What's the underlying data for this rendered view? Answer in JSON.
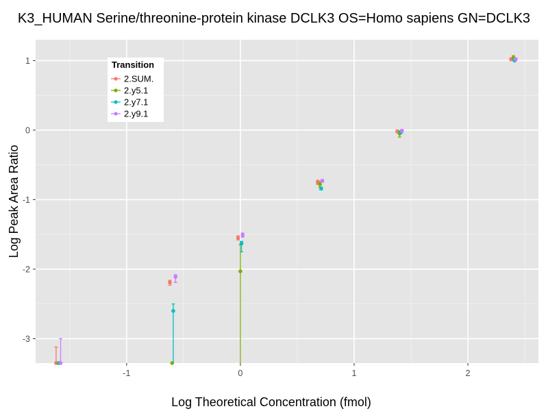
{
  "chart_data": {
    "type": "scatter",
    "title": "K3_HUMAN Serine/threonine-protein kinase DCLK3 OS=Homo sapiens GN=DCLK3",
    "xlabel": "Log Theoretical Concentration (fmol)",
    "ylabel": "Log Peak Area Ratio",
    "xlim": [
      -1.8,
      2.62
    ],
    "ylim": [
      -3.35,
      1.3
    ],
    "x_ticks": [
      -1,
      0,
      1,
      2
    ],
    "y_ticks": [
      -3,
      -2,
      -1,
      0,
      1
    ],
    "grid": true,
    "legend": {
      "title": "Transition",
      "position": "top-left"
    },
    "series": [
      {
        "name": "2.SUM.",
        "color": "#F8766D",
        "points": [
          {
            "x": -1.62,
            "y": -3.35,
            "lo": -3.35,
            "hi": -3.12
          },
          {
            "x": -0.62,
            "y": -2.19,
            "lo": -2.23,
            "hi": -2.16
          },
          {
            "x": -0.02,
            "y": -1.55,
            "lo": -1.58,
            "hi": -1.52
          },
          {
            "x": 0.68,
            "y": -0.75,
            "lo": -0.78,
            "hi": -0.72
          },
          {
            "x": 1.38,
            "y": -0.02,
            "lo": -0.04,
            "hi": 0.0
          },
          {
            "x": 2.38,
            "y": 1.02,
            "lo": 1.0,
            "hi": 1.04
          }
        ]
      },
      {
        "name": "2.y5.1",
        "color": "#7CAE00",
        "points": [
          {
            "x": -1.6,
            "y": -3.35,
            "lo": -3.35,
            "hi": -3.35
          },
          {
            "x": -0.6,
            "y": -3.35,
            "lo": -3.35,
            "hi": -3.35
          },
          {
            "x": 0.0,
            "y": -2.03,
            "lo": -3.35,
            "hi": -1.65
          },
          {
            "x": 0.7,
            "y": -0.78,
            "lo": -0.82,
            "hi": -0.74
          },
          {
            "x": 1.4,
            "y": -0.05,
            "lo": -0.1,
            "hi": -0.01
          },
          {
            "x": 2.4,
            "y": 1.04,
            "lo": 1.01,
            "hi": 1.07
          }
        ]
      },
      {
        "name": "2.y7.1",
        "color": "#00BFC4",
        "points": [
          {
            "x": -1.59,
            "y": -3.35,
            "lo": -3.35,
            "hi": -3.35
          },
          {
            "x": -0.59,
            "y": -2.6,
            "lo": -3.35,
            "hi": -2.5
          },
          {
            "x": 0.01,
            "y": -1.63,
            "lo": -1.75,
            "hi": -1.6
          },
          {
            "x": 0.71,
            "y": -0.84,
            "lo": -0.86,
            "hi": -0.82
          },
          {
            "x": 1.41,
            "y": -0.03,
            "lo": -0.05,
            "hi": -0.01
          },
          {
            "x": 2.41,
            "y": 1.0,
            "lo": 0.99,
            "hi": 1.02
          }
        ]
      },
      {
        "name": "2.y9.1",
        "color": "#C77CFF",
        "points": [
          {
            "x": -1.58,
            "y": -3.35,
            "lo": -3.35,
            "hi": -3.0
          },
          {
            "x": -0.57,
            "y": -2.11,
            "lo": -2.19,
            "hi": -2.08
          },
          {
            "x": 0.02,
            "y": -1.51,
            "lo": -1.54,
            "hi": -1.48
          },
          {
            "x": 0.72,
            "y": -0.73,
            "lo": -0.75,
            "hi": -0.71
          },
          {
            "x": 1.42,
            "y": -0.01,
            "lo": -0.03,
            "hi": 0.01
          },
          {
            "x": 2.42,
            "y": 1.02,
            "lo": 1.0,
            "hi": 1.04
          }
        ]
      }
    ]
  }
}
